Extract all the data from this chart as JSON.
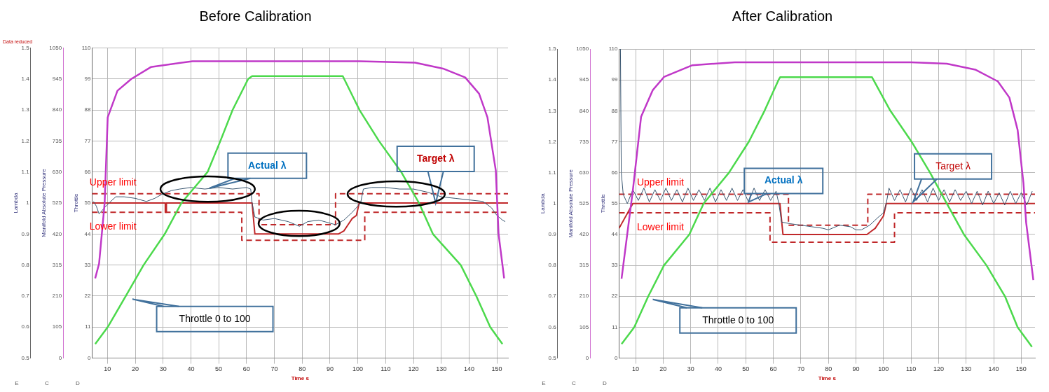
{
  "chart_data": [
    {
      "type": "line",
      "title": "Before Calibration",
      "subtitle": "Data reduced",
      "xlabel": "Time s",
      "ylabel": "Lambda",
      "y2label": "Manifold Absolute Pressure",
      "y3label": "Throttle",
      "xlim": [
        4.5,
        154
      ],
      "xticks": [
        10,
        20,
        30,
        40,
        50,
        60,
        70,
        80,
        90,
        100,
        110,
        120,
        130,
        140,
        150
      ],
      "ylim": [
        0.5,
        1.5
      ],
      "yticks": [
        0.5,
        0.6,
        0.7,
        0.8,
        0.9,
        1,
        1.1,
        1.2,
        1.3,
        1.4,
        1.5
      ],
      "y2lim": [
        0,
        1050
      ],
      "y2ticks": [
        0,
        105,
        210,
        315,
        420,
        525,
        630,
        735,
        840,
        945,
        1050
      ],
      "y3lim": [
        0,
        110
      ],
      "y3ticks": [
        0,
        11,
        22,
        33,
        44,
        55,
        66,
        77,
        88,
        99,
        110
      ],
      "grid": true,
      "legend": false,
      "marker": "none",
      "series": [
        {
          "color": "#c038c8",
          "axis": "y2",
          "x": [
            5.6,
            7,
            9,
            10.1,
            13.6,
            18.6,
            25.6,
            40.6,
            70,
            100.6,
            120.6,
            130.6,
            138.6,
            143.6,
            146.6,
            149.6,
            150.6,
            152.6
          ],
          "values": [
            270,
            320,
            525,
            815,
            905,
            945,
            985,
            1005,
            1005,
            1005,
            1000,
            980,
            950,
            895,
            815,
            635,
            420,
            270
          ]
        },
        {
          "color": "#4cd94c",
          "axis": "y3",
          "x": [
            5.6,
            10.1,
            16.6,
            23,
            30.6,
            36.6,
            46,
            50.6,
            55,
            60.6,
            62,
            94.6,
            100.6,
            107.6,
            115.6,
            122,
            127,
            137,
            142.6,
            147.6,
            152
          ],
          "values": [
            5,
            11,
            22,
            33,
            44,
            55,
            66,
            77,
            88,
            99,
            100,
            100,
            88,
            77,
            66,
            55,
            44,
            33,
            22,
            11,
            5
          ]
        },
        {
          "color": "#3a5670",
          "x": [
            5,
            6,
            7,
            8,
            10,
            13,
            16,
            20,
            24,
            27,
            30,
            33,
            36,
            40,
            45,
            50,
            55,
            60,
            61.5,
            62,
            63,
            66,
            70,
            75,
            79,
            82,
            86,
            90,
            92,
            95,
            98,
            100,
            101,
            102,
            105,
            110,
            115,
            120,
            125,
            130,
            135,
            140,
            145,
            148,
            150,
            152,
            153
          ],
          "values": [
            1.005,
            0.99,
            0.965,
            0.975,
            0.995,
            1.02,
            1.02,
            1.015,
            1.005,
            1.015,
            1.03,
            1.04,
            1.045,
            1.05,
            1.045,
            1.05,
            1.045,
            1.05,
            1.045,
            1,
            0.955,
            0.945,
            0.95,
            0.94,
            0.925,
            0.94,
            0.945,
            0.935,
            0.93,
            0.945,
            0.97,
            0.99,
            1,
            1.045,
            1.05,
            1.05,
            1.045,
            1.045,
            1.035,
            1.02,
            1.015,
            1.01,
            1.005,
            0.985,
            0.96,
            0.945,
            0.94
          ]
        },
        {
          "color": "#c0282a",
          "line_style": "dashed",
          "x": [
            4.5,
            64.5,
            64.5,
            92,
            92,
            154
          ],
          "values": [
            1.03,
            1.03,
            0.93,
            0.93,
            1.03,
            1.03
          ]
        },
        {
          "color": "#c0282a",
          "line_style": "dashed",
          "x": [
            4.5,
            58.3,
            58.3,
            102.5,
            102.5,
            154
          ],
          "values": [
            0.97,
            0.97,
            0.88,
            0.88,
            0.97,
            0.97
          ]
        },
        {
          "color": "#c0282a",
          "line_style": "solid",
          "x": [
            4.5,
            30.8,
            30.8,
            31.2,
            31.2,
            62,
            63,
            93,
            95,
            96.5,
            98,
            99.5,
            100.5,
            154
          ],
          "values": [
            1,
            1,
            0.97,
            0.97,
            1,
            1,
            0.9,
            0.9,
            0.91,
            0.93,
            0.95,
            0.96,
            1,
            1
          ]
        }
      ],
      "annotations": [
        {
          "text": "Upper limit",
          "x": 12,
          "y": 1.03
        },
        {
          "text": "Lower limit",
          "x": 12,
          "y": 0.97
        },
        "Actual λ",
        "Target λ",
        "Throttle 0 to 100",
        "E",
        "C",
        "D"
      ]
    },
    {
      "type": "line",
      "title": "After Calibration",
      "xlabel": "Time s",
      "ylabel": "Lambda",
      "y2label": "Manifold Absolute Pressure",
      "y3label": "Throttle",
      "xlim": [
        4,
        155
      ],
      "xticks": [
        10,
        20,
        30,
        40,
        50,
        60,
        70,
        80,
        90,
        100,
        110,
        120,
        130,
        140,
        150
      ],
      "ylim": [
        0.5,
        1.5
      ],
      "yticks": [
        0.5,
        0.6,
        0.7,
        0.8,
        0.9,
        1,
        1.1,
        1.2,
        1.3,
        1.4,
        1.5
      ],
      "y2lim": [
        0,
        1050
      ],
      "y2ticks": [
        0,
        105,
        210,
        315,
        420,
        525,
        630,
        735,
        840,
        945,
        1050
      ],
      "y3lim": [
        0,
        110
      ],
      "y3ticks": [
        0,
        11,
        22,
        33,
        44,
        55,
        66,
        77,
        88,
        99,
        110
      ],
      "grid": true,
      "legend": false,
      "marker": "none",
      "series": [
        {
          "color": "#c038c8",
          "axis": "y2",
          "x": [
            4.9,
            9,
            12,
            16.2,
            20.3,
            30.6,
            46,
            80,
            110,
            123,
            133.3,
            141.5,
            145.7,
            148.7,
            150.8,
            151.8,
            154.4
          ],
          "values": [
            270,
            570,
            820,
            910,
            955,
            995,
            1005,
            1005,
            1005,
            1000,
            980,
            940,
            885,
            775,
            595,
            460,
            265
          ]
        },
        {
          "color": "#4cd94c",
          "axis": "y3",
          "x": [
            4.9,
            9.5,
            14.6,
            20.3,
            29.5,
            34.7,
            43.9,
            51.1,
            56.8,
            61.9,
            62.5,
            95.8,
            102.5,
            110.2,
            116.9,
            123,
            129.2,
            137.4,
            144.1,
            148.7,
            153.9
          ],
          "values": [
            5,
            11,
            22,
            33,
            44,
            55,
            66,
            77,
            88,
            99,
            100,
            100,
            88,
            77,
            66,
            55,
            44,
            33,
            22,
            11,
            4
          ]
        },
        {
          "color": "#3a5670",
          "x": [
            4.5,
            4.8,
            5.5,
            7,
            9,
            11,
            13,
            15,
            17,
            19,
            21,
            23,
            25,
            27,
            29,
            31,
            33,
            35,
            37,
            39,
            41,
            43,
            45,
            47,
            49,
            51,
            53,
            55,
            57,
            59,
            61,
            62,
            63,
            66,
            70,
            74,
            78,
            80,
            84,
            88,
            90,
            92,
            95,
            98,
            100,
            101,
            102,
            104,
            106,
            108,
            110,
            112,
            114,
            116,
            118,
            120,
            122,
            124,
            126,
            128,
            130,
            132,
            134,
            136,
            138,
            140,
            142,
            144,
            146,
            148,
            150,
            152,
            154
          ],
          "values": [
            1.5,
            1.1,
            1.03,
            1,
            1.045,
            1.01,
            1.05,
            1.005,
            1.045,
            1.01,
            1.05,
            1.01,
            1.045,
            1.005,
            1.05,
            1.01,
            1.045,
            1.01,
            1.05,
            1.005,
            1.045,
            1.01,
            1.05,
            1.01,
            1.045,
            1.005,
            1.05,
            1.01,
            1.045,
            1.01,
            1.04,
            1,
            0.94,
            0.935,
            0.93,
            0.925,
            0.92,
            0.915,
            0.93,
            0.925,
            0.915,
            0.915,
            0.93,
            0.955,
            0.97,
            1,
            1.05,
            1.01,
            1.045,
            1.005,
            1.05,
            1.01,
            1.045,
            1.005,
            1.05,
            1.01,
            1.045,
            1.005,
            1.045,
            1.01,
            1.04,
            1,
            1.04,
            0.995,
            1.04,
            1,
            1.035,
            0.995,
            1.04,
            1,
            1.035,
            0.995,
            1.04
          ]
        },
        {
          "color": "#c0282a",
          "line_style": "dashed",
          "x": [
            4,
            65.5,
            65.5,
            94.3,
            94.3,
            155
          ],
          "values": [
            1.03,
            1.03,
            0.93,
            0.93,
            1.03,
            1.03
          ]
        },
        {
          "color": "#c0282a",
          "line_style": "dashed",
          "x": [
            4,
            58.8,
            58.8,
            104,
            104,
            155
          ],
          "values": [
            0.97,
            0.97,
            0.875,
            0.875,
            0.97,
            0.97
          ]
        },
        {
          "color": "#c0282a",
          "line_style": "solid",
          "x": [
            4,
            9,
            62.4,
            63.5,
            94,
            95.5,
            97,
            98.5,
            100,
            101,
            155
          ],
          "values": [
            0.92,
            1,
            1,
            0.9,
            0.9,
            0.91,
            0.92,
            0.94,
            0.96,
            1,
            1
          ]
        }
      ],
      "annotations": [
        {
          "text": "Upper limit",
          "x": 19,
          "y": 1.03
        },
        {
          "text": "Lower limit",
          "x": 19,
          "y": 0.97
        },
        {
          "text": "Actual λ",
          "x": 51,
          "y": 1.005
        },
        "Target λ",
        "Throttle 0 to 100",
        "E",
        "C",
        "D"
      ]
    }
  ]
}
